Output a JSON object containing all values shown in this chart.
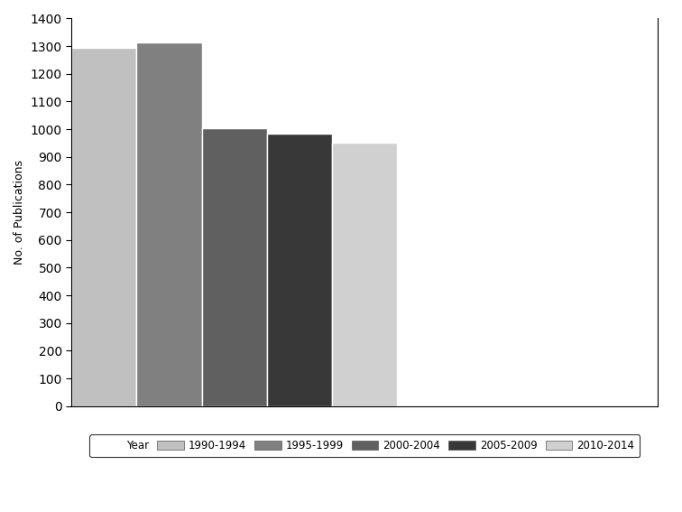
{
  "categories": [
    "1990-1994",
    "1995-1999",
    "2000-2004",
    "2005-2009",
    "2010-2014"
  ],
  "values": [
    1295,
    1315,
    1005,
    985,
    950
  ],
  "bar_colors": [
    "#c0c0c0",
    "#808080",
    "#606060",
    "#383838",
    "#d0d0d0"
  ],
  "ylabel": "No. of Publications",
  "ylim": [
    0,
    1400
  ],
  "yticks": [
    0,
    100,
    200,
    300,
    400,
    500,
    600,
    700,
    800,
    900,
    1000,
    1100,
    1200,
    1300,
    1400
  ],
  "legend_label": "Year",
  "background_color": "#ffffff",
  "bar_width": 1.0,
  "bar_edge_color": "#ffffff",
  "bar_edge_width": 1.0
}
